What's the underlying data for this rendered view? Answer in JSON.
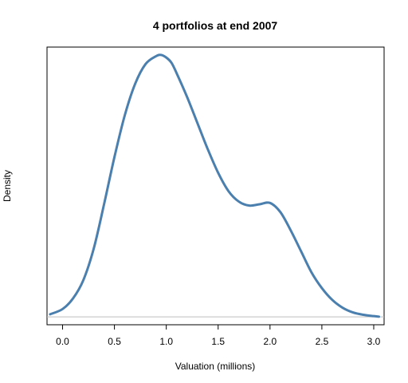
{
  "chart_data": {
    "type": "line",
    "title": "4 portfolios at end 2007",
    "xlabel": "Valuation (millions)",
    "ylabel": "Density",
    "xlim": [
      -0.15,
      3.1
    ],
    "ylim": [
      -0.03,
      1.03
    ],
    "x_ticks": [
      0.0,
      0.5,
      1.0,
      1.5,
      2.0,
      2.5,
      3.0
    ],
    "x_tick_labels": [
      "0.0",
      "0.5",
      "1.0",
      "1.5",
      "2.0",
      "2.5",
      "3.0"
    ],
    "y_ticks_shown": false,
    "baseline": 0,
    "grid": false,
    "legend": "none",
    "series": [
      {
        "color": "#4a7fae",
        "x": [
          -0.12,
          0.0,
          0.1,
          0.2,
          0.3,
          0.4,
          0.5,
          0.6,
          0.7,
          0.8,
          0.9,
          0.95,
          1.0,
          1.05,
          1.1,
          1.2,
          1.3,
          1.4,
          1.5,
          1.6,
          1.7,
          1.8,
          1.9,
          2.0,
          2.1,
          2.2,
          2.3,
          2.4,
          2.5,
          2.6,
          2.7,
          2.8,
          2.9,
          3.0,
          3.05
        ],
        "values": [
          0.01,
          0.03,
          0.07,
          0.14,
          0.26,
          0.43,
          0.61,
          0.77,
          0.89,
          0.965,
          0.995,
          1.0,
          0.99,
          0.97,
          0.93,
          0.84,
          0.74,
          0.64,
          0.55,
          0.48,
          0.44,
          0.425,
          0.43,
          0.435,
          0.4,
          0.33,
          0.25,
          0.17,
          0.11,
          0.065,
          0.035,
          0.017,
          0.008,
          0.003,
          0.001
        ]
      }
    ]
  }
}
